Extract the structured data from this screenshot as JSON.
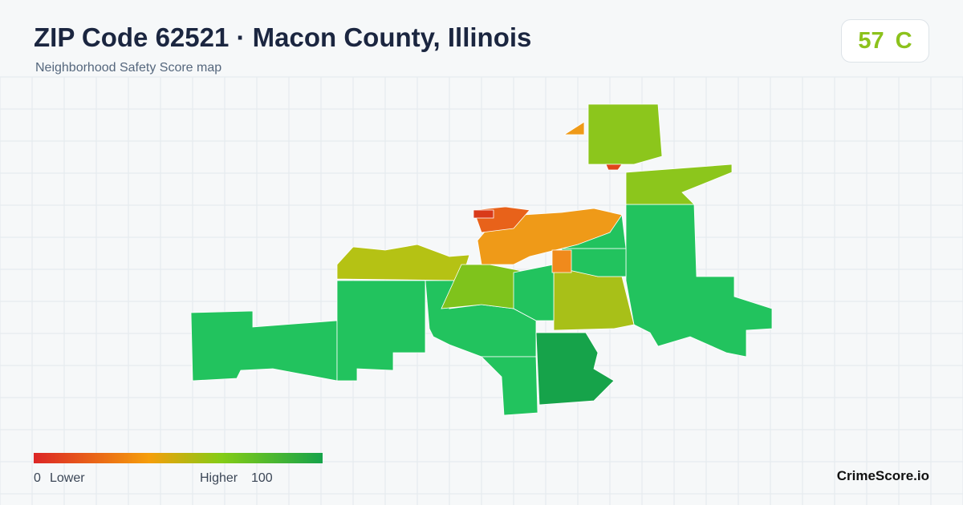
{
  "header": {
    "title": "ZIP Code 62521 · Macon County, Illinois",
    "subtitle": "Neighborhood Safety Score map"
  },
  "score": {
    "value": 57,
    "grade": "C"
  },
  "legend": {
    "min": 0,
    "min_label": "Lower",
    "max_label": "Higher",
    "max": 100
  },
  "brand": "CrimeScore.io"
}
